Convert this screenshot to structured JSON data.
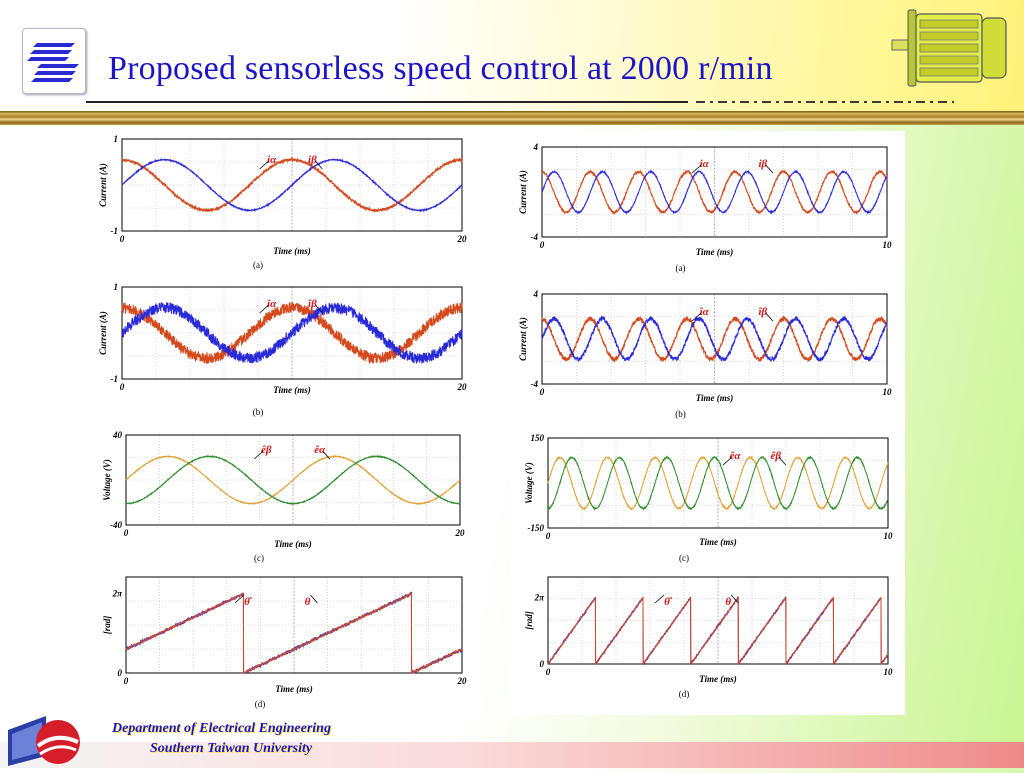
{
  "slide": {
    "title": "Proposed sensorless speed control at 2000 r/min",
    "footer_department": "Department of Electrical Engineering",
    "footer_university": "Southern Taiwan University"
  },
  "colors": {
    "title": "#1c14c8",
    "red_trace": "#d24a1e",
    "blue_trace": "#2a2ad8",
    "orange_trace": "#e0a032",
    "green_trace": "#2e8c2e",
    "label_red": "#d01818"
  },
  "icons": [
    "university-logo-icon",
    "motor-icon",
    "department-logo-icon"
  ],
  "chart_data": [
    {
      "id": "L-a",
      "type": "line",
      "xlabel": "Time (ms)",
      "ylabel": "Current (A)",
      "xlim": [
        0,
        20
      ],
      "ylim": [
        -1,
        1
      ],
      "xticks": [
        "0",
        "20"
      ],
      "yticks": [
        "1",
        "-1"
      ],
      "caption": "(a)",
      "series": [
        {
          "name": "iα",
          "wave": "sin",
          "amplitude": 0.55,
          "period": 10,
          "phase_deg": 90,
          "noise": 0.03,
          "color": "#d24a1e"
        },
        {
          "name": "iβ",
          "wave": "sin",
          "amplitude": 0.55,
          "period": 10,
          "phase_deg": 0,
          "noise": 0.01,
          "color": "#2a2ad8"
        }
      ]
    },
    {
      "id": "L-b",
      "type": "line",
      "xlabel": "Time (ms)",
      "ylabel": "Current (A)",
      "xlim": [
        0,
        20
      ],
      "ylim": [
        -1,
        1
      ],
      "xticks": [
        "0",
        "20"
      ],
      "yticks": [
        "1",
        "-1"
      ],
      "caption": "(b)",
      "series": [
        {
          "name": "îα",
          "wave": "sin",
          "amplitude": 0.55,
          "period": 10,
          "phase_deg": 90,
          "noise": 0.12,
          "color": "#d24a1e"
        },
        {
          "name": "îβ",
          "wave": "sin",
          "amplitude": 0.55,
          "period": 10,
          "phase_deg": 0,
          "noise": 0.12,
          "color": "#2a2ad8"
        }
      ]
    },
    {
      "id": "L-c",
      "type": "line",
      "xlabel": "Time (ms)",
      "ylabel": "Voltage (V)",
      "xlim": [
        0,
        20
      ],
      "ylim": [
        -40,
        40
      ],
      "xticks": [
        "0",
        "20"
      ],
      "yticks": [
        "40",
        "-40"
      ],
      "caption": "(c)",
      "series": [
        {
          "name": "êβ",
          "wave": "sin",
          "amplitude": 21,
          "period": 10,
          "phase_deg": 0,
          "noise": 0.3,
          "color": "#e0a032"
        },
        {
          "name": "êα",
          "wave": "sin",
          "amplitude": 21,
          "period": 10,
          "phase_deg": -90,
          "noise": 0.3,
          "color": "#2e8c2e"
        }
      ]
    },
    {
      "id": "L-d",
      "type": "line",
      "xlabel": "Time (ms)",
      "ylabel": "[rad]",
      "xlim": [
        0,
        20
      ],
      "ylim": [
        0,
        7.6
      ],
      "xticks": [
        "0",
        "20"
      ],
      "yticks": [
        "2π",
        "0"
      ],
      "ytick_values": [
        6.2832,
        0
      ],
      "caption": "(d)",
      "series": [
        {
          "name": "θ̂",
          "wave": "saw",
          "period": 10,
          "offset": -3.0,
          "noise": 0.12,
          "color": "#2a2ad8"
        },
        {
          "name": "θ",
          "wave": "saw",
          "period": 10,
          "offset": -3.0,
          "noise": 0.04,
          "color": "#d24a1e"
        }
      ]
    },
    {
      "id": "R-a",
      "type": "line",
      "xlabel": "Time (ms)",
      "ylabel": "Current (A)",
      "xlim": [
        0,
        10
      ],
      "ylim": [
        -4,
        4
      ],
      "xticks": [
        "0",
        "10"
      ],
      "yticks": [
        "4",
        "-4"
      ],
      "caption": "(a)",
      "series": [
        {
          "name": "iα",
          "wave": "sin",
          "amplitude": 1.8,
          "period": 1.4,
          "phase_deg": 90,
          "noise": 0.12,
          "color": "#d24a1e"
        },
        {
          "name": "iβ",
          "wave": "sin",
          "amplitude": 1.8,
          "period": 1.4,
          "phase_deg": 0,
          "noise": 0.06,
          "color": "#2a2ad8"
        }
      ]
    },
    {
      "id": "R-b",
      "type": "line",
      "xlabel": "Time (ms)",
      "ylabel": "Current (A)",
      "xlim": [
        0,
        10
      ],
      "ylim": [
        -4,
        4
      ],
      "xticks": [
        "0",
        "10"
      ],
      "yticks": [
        "4",
        "-4"
      ],
      "caption": "(b)",
      "series": [
        {
          "name": "îα",
          "wave": "sin",
          "amplitude": 1.8,
          "period": 1.4,
          "phase_deg": 90,
          "noise": 0.2,
          "color": "#d24a1e"
        },
        {
          "name": "îβ",
          "wave": "sin",
          "amplitude": 1.8,
          "period": 1.4,
          "phase_deg": 0,
          "noise": 0.2,
          "color": "#2a2ad8"
        }
      ]
    },
    {
      "id": "R-c",
      "type": "line",
      "xlabel": "Time (ms)",
      "ylabel": "Voltage (V)",
      "xlim": [
        0,
        10
      ],
      "ylim": [
        -150,
        150
      ],
      "xticks": [
        "0",
        "10"
      ],
      "yticks": [
        "150",
        "-150"
      ],
      "caption": "(c)",
      "series": [
        {
          "name": "êα",
          "wave": "sin",
          "amplitude": 85,
          "period": 1.4,
          "phase_deg": 0,
          "noise": 2,
          "color": "#e0a032"
        },
        {
          "name": "êβ",
          "wave": "sin",
          "amplitude": 85,
          "period": 1.4,
          "phase_deg": -90,
          "noise": 2,
          "color": "#2e8c2e"
        }
      ]
    },
    {
      "id": "R-d",
      "type": "line",
      "xlabel": "Time (ms)",
      "ylabel": "[rad]",
      "xlim": [
        0,
        10
      ],
      "ylim": [
        0,
        8.2
      ],
      "xticks": [
        "0",
        "10"
      ],
      "yticks": [
        "2π",
        "0"
      ],
      "ytick_values": [
        6.2832,
        0
      ],
      "caption": "(d)",
      "series": [
        {
          "name": "θ̂",
          "wave": "saw",
          "period": 1.4,
          "offset": 0,
          "noise": 0.1,
          "color": "#2a2ad8"
        },
        {
          "name": "θ",
          "wave": "saw",
          "period": 1.4,
          "offset": 0,
          "noise": 0.04,
          "color": "#d24a1e"
        }
      ]
    }
  ]
}
